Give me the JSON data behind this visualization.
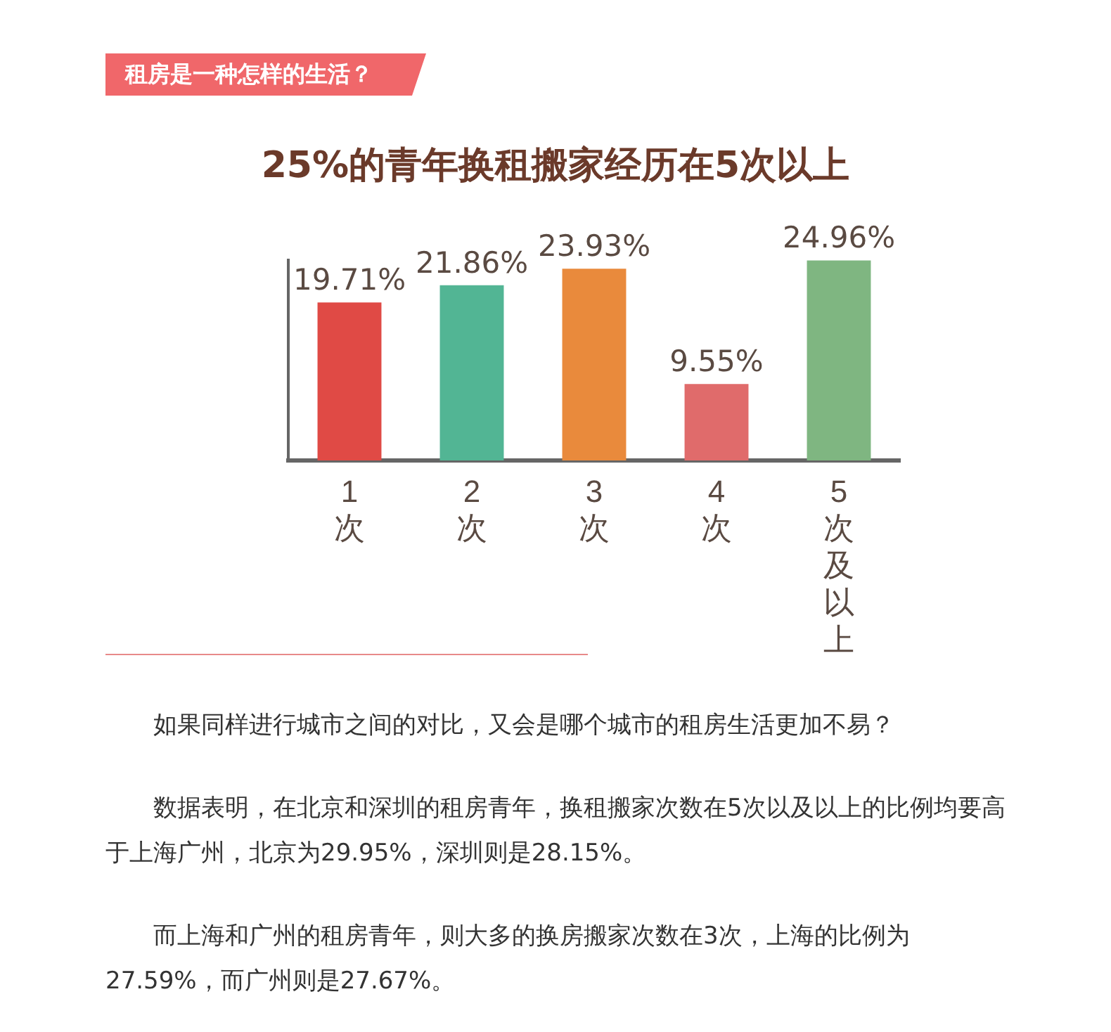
{
  "chart_data": {
    "type": "bar",
    "title": "25%的青年换租搬家经历在5次以上",
    "categories": [
      "1次",
      "2次",
      "3次",
      "4次",
      "5次及以上"
    ],
    "values": [
      19.71,
      21.86,
      23.93,
      9.55,
      24.96
    ],
    "colors": [
      "#e04a45",
      "#52b594",
      "#e98a3c",
      "#e06b6b",
      "#7fb681"
    ],
    "data_labels": true,
    "value_labels": [
      "19.71%",
      "21.86%",
      "23.93%",
      "9.55%",
      "24.96%"
    ],
    "grid": false,
    "legend": false,
    "annotations": [
      "租房是一种怎样的生活？",
      "如果同样进行城市之间的对比，又会是哪个城市的租房生活更加不易？",
      "数据表明，在北京和深圳的租房青年，换租搬家次数在5次以及以上的比例均要高于上海广州，北京为29.95%，深圳则是28.15%。",
      "而上海和广州的租房青年，则大多的换房搬家次数在3次，上海的比例为27.59%，而广州则是27.67%。"
    ]
  }
}
